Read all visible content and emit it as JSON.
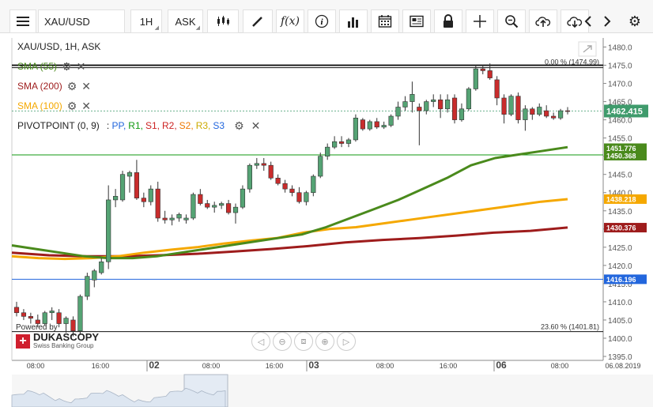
{
  "toolbar": {
    "menu_icon": "hamburger-menu-icon",
    "symbol": "XAU/USD",
    "timeframe": "1H",
    "side": "ASK",
    "icons": [
      "candlestick-type-icon",
      "draw-pencil-icon",
      "fx-indicator-icon",
      "info-icon",
      "bar-chart-icon",
      "calendar-icon",
      "news-icon",
      "lock-icon",
      "crosshair-icon",
      "zoom-icon",
      "upload-icon",
      "download-icon",
      "back-arrow-icon",
      "forward-arrow-icon",
      "settings-gear-icon"
    ]
  },
  "legend": {
    "title": "XAU/USD, 1H, ASK",
    "sma55": "SMA (55)",
    "sma200": "SMA (200)",
    "sma100": "SMA (100)",
    "pivot_label": "PIVOTPOINT (0, 9)",
    "pivot_items": [
      "PP",
      "R1",
      "S1",
      "R2",
      "S2",
      "R3",
      "S3"
    ],
    "pivot_colors": [
      "#2266dd",
      "#119911",
      "#cc2222",
      "#cc2222",
      "#ee7700",
      "#ccaa00",
      "#2266dd"
    ],
    "sma55_color": "#4a8a1c",
    "sma200_color": "#9e1c1c",
    "sma100_color": "#f5a800"
  },
  "branding": {
    "powered_by": "Powered by",
    "name": "DUKASCOPY",
    "tagline": "Swiss Banking Group"
  },
  "chart_data": {
    "type": "candlestick",
    "symbol": "XAU/USD",
    "timeframe": "1H",
    "price_range": [
      1395,
      1480
    ],
    "y_ticks": [
      1395,
      1400,
      1405,
      1410,
      1415,
      1420,
      1425,
      1430,
      1435,
      1440,
      1445,
      1450,
      1455,
      1460,
      1465,
      1470,
      1475,
      1480
    ],
    "x_labels": [
      "08:00",
      "16:00",
      "02",
      "08:00",
      "16:00",
      "03",
      "08:00",
      "16:00",
      "06",
      "08:00",
      "06.08.2019"
    ],
    "candles": [
      [
        1408.5,
        1410.0,
        1406.0,
        1407.0
      ],
      [
        1407.0,
        1408.0,
        1405.0,
        1406.0
      ],
      [
        1406.0,
        1407.0,
        1404.0,
        1405.5
      ],
      [
        1405.0,
        1406.5,
        1403.0,
        1404.0
      ],
      [
        1404.0,
        1407.5,
        1403.5,
        1407.0
      ],
      [
        1407.0,
        1408.5,
        1405.0,
        1407.5
      ],
      [
        1407.0,
        1408.0,
        1403.0,
        1404.0
      ],
      [
        1404.0,
        1406.0,
        1401.5,
        1405.5
      ],
      [
        1405.0,
        1406.0,
        1400.5,
        1402.0
      ],
      [
        1402.0,
        1412.0,
        1401.0,
        1411.5
      ],
      [
        1411.5,
        1418.0,
        1410.5,
        1417.0
      ],
      [
        1416.0,
        1419.0,
        1414.0,
        1418.5
      ],
      [
        1418.0,
        1422.0,
        1417.5,
        1421.0
      ],
      [
        1421.0,
        1442.0,
        1419.0,
        1438.0
      ],
      [
        1438.0,
        1441.0,
        1436.0,
        1439.0
      ],
      [
        1438.0,
        1446.0,
        1437.5,
        1445.0
      ],
      [
        1444.5,
        1446.0,
        1440.0,
        1445.5
      ],
      [
        1445.5,
        1449.0,
        1438.0,
        1438.5
      ],
      [
        1438.5,
        1440.0,
        1436.0,
        1437.5
      ],
      [
        1437.5,
        1442.0,
        1436.5,
        1441.0
      ],
      [
        1441.0,
        1443.0,
        1432.0,
        1433.0
      ],
      [
        1433.0,
        1435.0,
        1431.5,
        1432.5
      ],
      [
        1432.5,
        1434.0,
        1431.0,
        1433.0
      ],
      [
        1433.0,
        1434.5,
        1432.0,
        1434.0
      ],
      [
        1432.5,
        1434.0,
        1431.5,
        1433.0
      ],
      [
        1433.0,
        1440.0,
        1432.5,
        1439.5
      ],
      [
        1439.5,
        1441.0,
        1436.5,
        1437.0
      ],
      [
        1437.0,
        1438.0,
        1435.5,
        1436.0
      ],
      [
        1436.0,
        1437.5,
        1434.5,
        1436.5
      ],
      [
        1436.5,
        1437.5,
        1435.5,
        1437.0
      ],
      [
        1437.0,
        1438.0,
        1434.0,
        1434.5
      ],
      [
        1434.5,
        1437.0,
        1431.5,
        1436.0
      ],
      [
        1436.0,
        1442.0,
        1435.5,
        1441.0
      ],
      [
        1441.0,
        1448.0,
        1440.0,
        1447.5
      ],
      [
        1447.5,
        1449.5,
        1446.5,
        1448.0
      ],
      [
        1448.0,
        1449.5,
        1446.0,
        1447.5
      ],
      [
        1447.5,
        1448.5,
        1443.5,
        1444.0
      ],
      [
        1444.0,
        1445.0,
        1442.0,
        1442.5
      ],
      [
        1442.5,
        1443.5,
        1440.0,
        1441.0
      ],
      [
        1441.0,
        1442.0,
        1439.0,
        1440.0
      ],
      [
        1440.0,
        1441.5,
        1437.0,
        1437.5
      ],
      [
        1437.5,
        1440.5,
        1436.5,
        1440.0
      ],
      [
        1440.0,
        1445.0,
        1439.0,
        1444.5
      ],
      [
        1444.5,
        1451.0,
        1444.0,
        1450.0
      ],
      [
        1450.0,
        1453.5,
        1449.0,
        1452.5
      ],
      [
        1452.5,
        1455.5,
        1452.0,
        1454.0
      ],
      [
        1454.0,
        1455.5,
        1452.5,
        1453.5
      ],
      [
        1453.5,
        1455.0,
        1452.5,
        1454.5
      ],
      [
        1454.5,
        1461.5,
        1454.0,
        1460.5
      ],
      [
        1460.0,
        1460.5,
        1457.0,
        1457.5
      ],
      [
        1457.5,
        1460.0,
        1457.0,
        1459.5
      ],
      [
        1459.5,
        1460.5,
        1457.5,
        1458.0
      ],
      [
        1458.0,
        1459.5,
        1457.5,
        1458.5
      ],
      [
        1458.5,
        1461.5,
        1458.0,
        1461.0
      ],
      [
        1461.0,
        1465.0,
        1460.0,
        1463.5
      ],
      [
        1463.5,
        1466.5,
        1462.5,
        1465.0
      ],
      [
        1465.0,
        1470.5,
        1462.0,
        1467.0
      ],
      [
        1463.5,
        1464.5,
        1453.0,
        1462.5
      ],
      [
        1462.5,
        1465.5,
        1461.5,
        1465.0
      ],
      [
        1465.0,
        1467.0,
        1463.5,
        1465.5
      ],
      [
        1465.5,
        1467.0,
        1460.5,
        1463.0
      ],
      [
        1463.0,
        1467.0,
        1462.0,
        1465.5
      ],
      [
        1466.0,
        1467.0,
        1459.0,
        1460.0
      ],
      [
        1460.0,
        1464.5,
        1459.5,
        1463.0
      ],
      [
        1463.0,
        1469.0,
        1462.5,
        1468.5
      ],
      [
        1468.5,
        1475.0,
        1468.0,
        1474.0
      ],
      [
        1474.0,
        1475.0,
        1472.5,
        1473.5
      ],
      [
        1473.5,
        1475.5,
        1471.0,
        1471.5
      ],
      [
        1471.0,
        1472.0,
        1464.0,
        1466.0
      ],
      [
        1466.0,
        1467.0,
        1459.0,
        1461.5
      ],
      [
        1461.5,
        1467.0,
        1461.0,
        1466.5
      ],
      [
        1466.5,
        1467.5,
        1459.0,
        1460.0
      ],
      [
        1460.0,
        1464.0,
        1457.0,
        1463.0
      ],
      [
        1463.0,
        1463.5,
        1460.0,
        1461.5
      ],
      [
        1461.5,
        1464.5,
        1461.0,
        1463.5
      ],
      [
        1462.5,
        1464.0,
        1460.5,
        1461.0
      ],
      [
        1461.0,
        1462.0,
        1460.0,
        1460.5
      ],
      [
        1460.5,
        1463.0,
        1460.0,
        1462.5
      ],
      [
        1462.5,
        1463.5,
        1461.5,
        1462.4
      ]
    ],
    "sma55": [
      1425.5,
      1424.5,
      1423.5,
      1422.5,
      1422.0,
      1422.0,
      1422.5,
      1423.5,
      1424.5,
      1425.5,
      1426.5,
      1427.5,
      1428.5,
      1430.5,
      1433.0,
      1435.5,
      1438.0,
      1441.0,
      1444.0,
      1447.5,
      1449.5,
      1450.5,
      1451.5,
      1452.5
    ],
    "sma100": [
      1422.5,
      1422.0,
      1421.8,
      1422.0,
      1422.5,
      1423.5,
      1424.3,
      1425.0,
      1426.0,
      1426.8,
      1427.5,
      1429.0,
      1430.0,
      1430.5,
      1431.5,
      1432.5,
      1433.5,
      1434.5,
      1435.5,
      1436.5,
      1437.5,
      1438.2
    ],
    "sma200": [
      1423.5,
      1422.8,
      1422.5,
      1422.5,
      1422.8,
      1423.2,
      1423.8,
      1424.5,
      1425.3,
      1426.3,
      1427.0,
      1427.5,
      1428.2,
      1429.0,
      1429.5,
      1430.4
    ],
    "fib_levels": [
      {
        "label": "0.00 % (1474.99)",
        "price": 1474.99
      },
      {
        "label": "23.60 % (1401.81)",
        "price": 1401.81
      }
    ],
    "markers": [
      {
        "label": "1462.415",
        "price": 1462.415,
        "color": "#3f9b6c"
      },
      {
        "label": "1451.776",
        "price": 1451.776,
        "color": "#4a8a1c"
      },
      {
        "label": "1450.368",
        "price": 1450.368,
        "color": "#4a8a1c"
      },
      {
        "label": "1438.218",
        "price": 1438.218,
        "color": "#f5a800"
      },
      {
        "label": "1430.376",
        "price": 1430.376,
        "color": "#9e1c1c"
      },
      {
        "label": "1416.196",
        "price": 1416.196,
        "color": "#2266dd"
      }
    ],
    "pivot_lines": [
      {
        "price": 1450.368,
        "color": "#119911"
      },
      {
        "price": 1416.196,
        "color": "#2266dd"
      }
    ],
    "up_color": "#55a374",
    "down_color": "#c92c2c"
  }
}
